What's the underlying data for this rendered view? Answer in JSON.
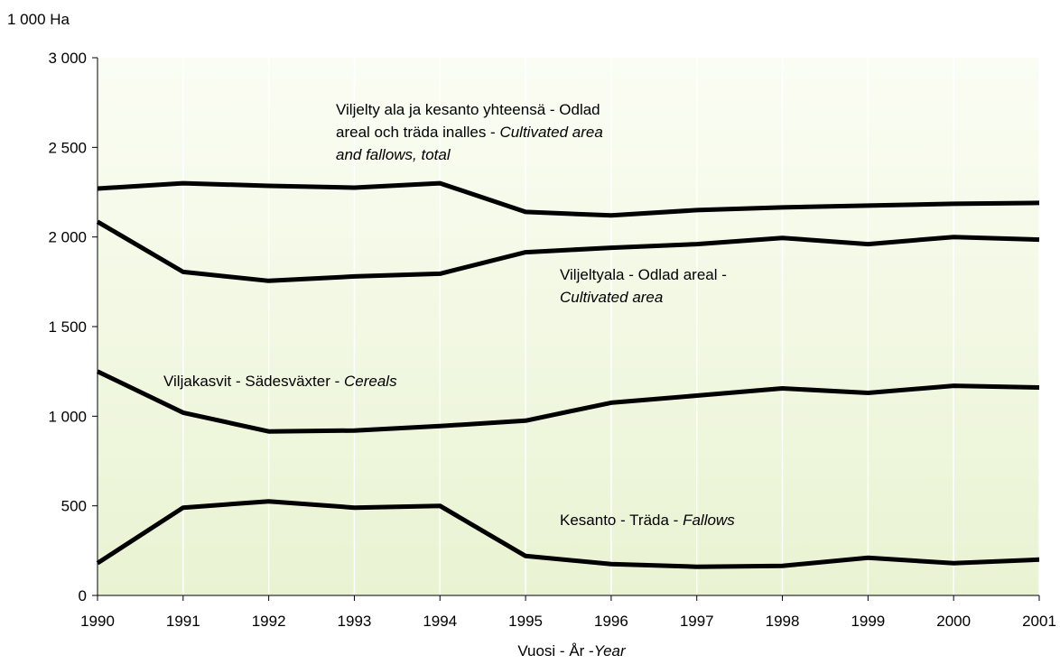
{
  "chart_data": {
    "type": "line",
    "ylabel": "1 000 Ha",
    "xlabel": {
      "plain": "Vuosi - År -",
      "italic": "Year"
    },
    "ylim": [
      0,
      3000
    ],
    "yticks": [
      0,
      500,
      1000,
      1500,
      2000,
      2500,
      3000
    ],
    "ytick_labels": [
      "0",
      "500",
      "1 000",
      "1 500",
      "2 000",
      "2 500",
      "3 000"
    ],
    "x": [
      1990,
      1991,
      1992,
      1993,
      1994,
      1995,
      1996,
      1997,
      1998,
      1999,
      2000,
      2001
    ],
    "grid": "vertical",
    "background": "#eef6dc",
    "line_color": "#000000",
    "series": [
      {
        "key": "total",
        "label_lines": [
          [
            {
              "t": "Viljelty ala ja kesanto yhteensä - Odlad",
              "i": false
            }
          ],
          [
            {
              "t": "areal och träda inalles - ",
              "i": false
            },
            {
              "t": "Cultivated area",
              "i": true
            }
          ],
          [
            {
              "t": "and fallows, total",
              "i": true
            }
          ]
        ],
        "values": [
          2270,
          2300,
          2285,
          2275,
          2300,
          2140,
          2120,
          2150,
          2165,
          2175,
          2185,
          2190
        ]
      },
      {
        "key": "cultivated",
        "label_lines": [
          [
            {
              "t": "Viljeltyala - Odlad areal -",
              "i": false
            }
          ],
          [
            {
              "t": "Cultivated area",
              "i": true
            }
          ]
        ],
        "values": [
          2085,
          1805,
          1755,
          1780,
          1795,
          1915,
          1940,
          1960,
          1995,
          1960,
          2000,
          1985
        ]
      },
      {
        "key": "cereals",
        "label_lines": [
          [
            {
              "t": "Viljakasvit - Sädesväxter - ",
              "i": false
            },
            {
              "t": "Cereals",
              "i": true
            }
          ]
        ],
        "values": [
          1250,
          1020,
          915,
          920,
          945,
          975,
          1075,
          1115,
          1155,
          1130,
          1170,
          1160
        ]
      },
      {
        "key": "fallows",
        "label_lines": [
          [
            {
              "t": "Kesanto - Träda - ",
              "i": false
            },
            {
              "t": "Fallows",
              "i": true
            }
          ]
        ],
        "values": [
          180,
          490,
          525,
          490,
          500,
          220,
          175,
          160,
          165,
          210,
          180,
          200
        ]
      }
    ]
  }
}
